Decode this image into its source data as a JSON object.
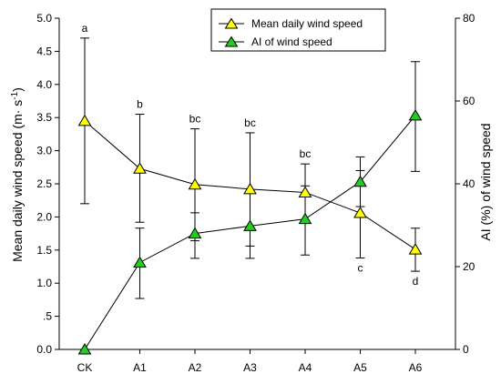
{
  "chart_data": {
    "type": "line",
    "categories": [
      "CK",
      "A1",
      "A2",
      "A3",
      "A4",
      "A5",
      "A6"
    ],
    "y_left": {
      "label_main": "Mean daily wind speed (m",
      "label_dot": "·",
      "label_unit": " s",
      "label_sup": "-1",
      "label_close": ")",
      "lim": [
        0,
        5
      ],
      "ticks": [
        0,
        0.5,
        1,
        1.5,
        2,
        2.5,
        3,
        3.5,
        4,
        4.5,
        5
      ],
      "tick_labels": [
        "0.0",
        ".5",
        "1.0",
        "1.5",
        "2.0",
        "2.5",
        "3.0",
        "3.5",
        "4.0",
        "4.5",
        "5.0"
      ]
    },
    "y_right": {
      "label": "AI (%) of wind speed",
      "lim": [
        0,
        80
      ],
      "ticks": [
        0,
        20,
        40,
        60,
        80
      ],
      "tick_labels": [
        "0",
        "20",
        "40",
        "60",
        "80"
      ]
    },
    "series": [
      {
        "name": "Mean daily wind speed",
        "axis": "left",
        "color": "#ffff00",
        "values": [
          3.45,
          2.73,
          2.49,
          2.42,
          2.37,
          2.06,
          1.51
        ],
        "err_upper": [
          4.7,
          3.55,
          3.33,
          3.27,
          2.8,
          2.7,
          1.83
        ],
        "err_lower": [
          2.2,
          1.92,
          1.64,
          1.56,
          1.93,
          1.38,
          1.18
        ],
        "sig_labels": [
          "a",
          "b",
          "bc",
          "bc",
          "bc",
          "c",
          "d"
        ],
        "sig_positions": [
          "above",
          "above",
          "above",
          "above",
          "above",
          "below",
          "below"
        ]
      },
      {
        "name": "AI of wind speed",
        "axis": "right",
        "color": "#22cc22",
        "values": [
          0,
          21.0,
          28.0,
          29.8,
          31.5,
          40.5,
          56.5
        ],
        "err_upper": [
          null,
          29.3,
          33.0,
          38.0,
          39.5,
          46.5,
          69.5
        ],
        "err_lower": [
          null,
          12.3,
          22.0,
          22.0,
          22.8,
          34.5,
          43.0
        ]
      }
    ],
    "legend_position": "top-right",
    "grid": false
  }
}
